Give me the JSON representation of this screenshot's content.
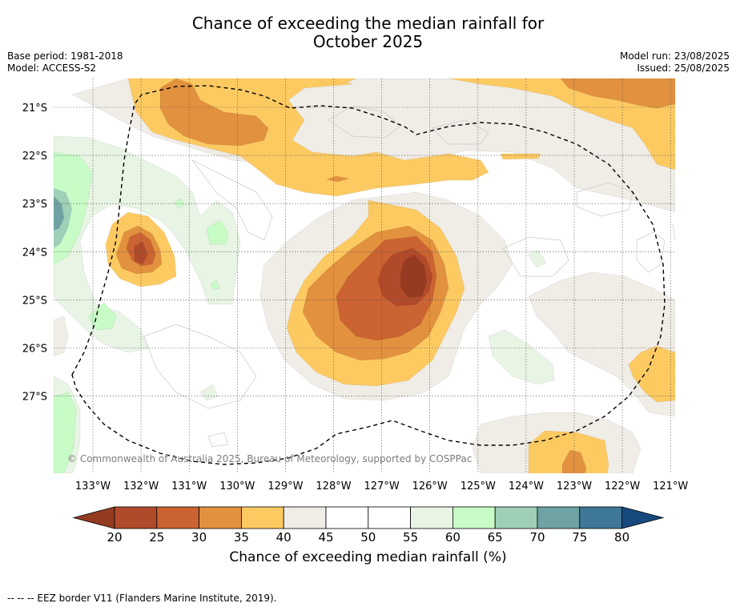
{
  "header": {
    "title_line1": "Chance of exceeding the median rainfall for",
    "title_line2": "October 2025",
    "base_period": "Base period: 1981-2018",
    "model": "Model: ACCESS-S2",
    "model_run": "Model run: 23/08/2025",
    "issued": "Issued: 25/08/2025"
  },
  "map": {
    "lon_labels": [
      "133°W",
      "132°W",
      "131°W",
      "130°W",
      "129°W",
      "128°W",
      "127°W",
      "126°W",
      "125°W",
      "124°W",
      "123°W",
      "122°W",
      "121°W"
    ],
    "lat_labels": [
      "21°S",
      "22°S",
      "23°S",
      "24°S",
      "25°S",
      "26°S",
      "27°S"
    ],
    "copyright": "© Commonwealth of Australia 2025, Bureau of Meteorology, supported by COSPPac",
    "colors": {
      "c20_25": "#b14a2a",
      "c25_30": "#cb6332",
      "c30_35": "#e2913f",
      "c35_40": "#fdca62",
      "c40_45": "#f0ece6",
      "c45_55": "#ffffff",
      "c55_60": "#e8f4e4",
      "c60_65": "#c8fcc6",
      "c65_70": "#9ecfb7",
      "c70_75": "#6fa3a3",
      "c75_80": "#3f7896",
      "c_below20": "#943b22",
      "c_above80": "#17497f"
    }
  },
  "colorbar": {
    "ticks": [
      "20",
      "25",
      "30",
      "35",
      "40",
      "45",
      "50",
      "55",
      "60",
      "65",
      "70",
      "75",
      "80"
    ],
    "label": "Chance of exceeding median rainfall (%)"
  },
  "footnote": "--  --  -- EEZ border V11 (Flanders Marine Institute, 2019)."
}
